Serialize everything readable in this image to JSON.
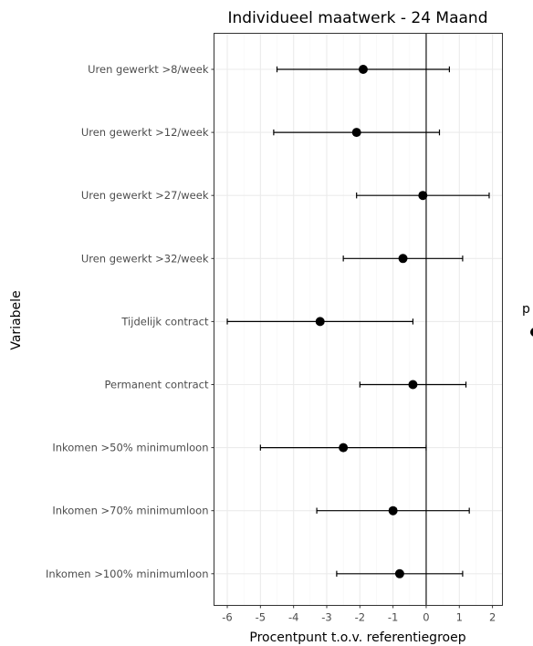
{
  "chart_data": {
    "type": "scatter",
    "title": "Individueel maatwerk  -  24 Maand",
    "xlabel": "Procentpunt t.o.v. referentiegroep",
    "ylabel": "Variabele",
    "xlim": [
      -6.4,
      2.3
    ],
    "xticks": [
      -6,
      -5,
      -4,
      -3,
      -2,
      -1,
      0,
      1,
      2
    ],
    "xtick_labels": [
      "-6",
      "-5",
      "-4",
      "-3",
      "-2",
      "-1",
      "0",
      "1",
      "2"
    ],
    "reference_line": 0,
    "grid": true,
    "legend_placement": "right",
    "legend_text": "p",
    "categories": [
      "Uren gewerkt >8/week",
      "Uren gewerkt >12/week",
      "Uren gewerkt >27/week",
      "Uren gewerkt >32/week",
      "Tijdelijk contract",
      "Permanent contract",
      "Inkomen >50% minimumloon",
      "Inkomen >70% minimumloon",
      "Inkomen >100% minimumloon"
    ],
    "series": [
      {
        "estimate": [
          -1.9,
          -2.1,
          -0.1,
          -0.7,
          -3.2,
          -0.4,
          -2.5,
          -1.0,
          -0.8
        ],
        "lower": [
          -4.5,
          -4.6,
          -2.1,
          -2.5,
          -6.0,
          -2.0,
          -5.0,
          -3.3,
          -2.7
        ],
        "upper": [
          0.7,
          0.4,
          1.9,
          1.1,
          -0.4,
          1.2,
          0.0,
          1.3,
          1.1
        ]
      }
    ]
  },
  "colors": {
    "point": "#000000",
    "errorbar": "#000000",
    "grid_major": "#ebebeb",
    "grid_minor": "#f5f5f5",
    "panel_border": "#333333",
    "reference_line": "#000000",
    "tick_text": "#4d4d4d"
  }
}
